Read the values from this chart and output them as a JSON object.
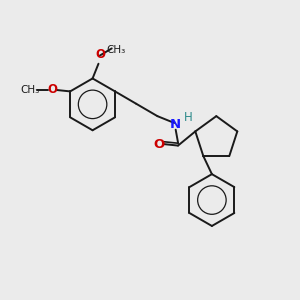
{
  "background_color": "#ebebeb",
  "bond_color": "#1a1a1a",
  "N_color": "#1a1aff",
  "O_color": "#cc0000",
  "H_color": "#2e8b8b",
  "figsize": [
    3.0,
    3.0
  ],
  "dpi": 100,
  "xlim": [
    0,
    10
  ],
  "ylim": [
    0,
    10
  ]
}
